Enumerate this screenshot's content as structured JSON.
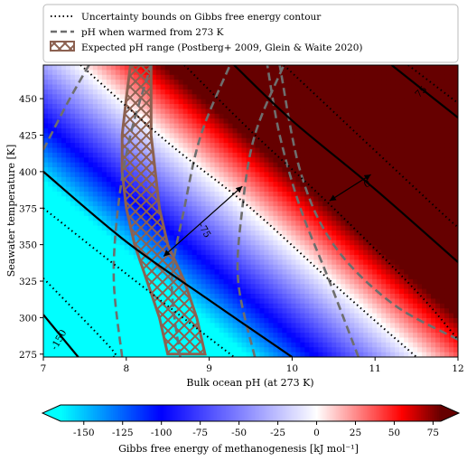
{
  "chart_data": [
    {
      "type": "heatmap",
      "subtype": "filled contour map with overlaid contour lines",
      "xlabel": "Bulk ocean pH (at 273 K)",
      "ylabel": "Seawater temperature [K]",
      "xlim": [
        7,
        12
      ],
      "ylim": [
        273,
        473
      ],
      "xticks": [
        "7",
        "8",
        "9",
        "10",
        "11",
        "12"
      ],
      "yticks": [
        "275",
        "300",
        "325",
        "350",
        "375",
        "400",
        "425",
        "450"
      ],
      "legend_position": "top",
      "legend": [
        {
          "label": "Uncertainty bounds on Gibbs free energy contour",
          "style": "dotted-black-line"
        },
        {
          "label": "pH when warmed from 273 K",
          "style": "dashed-gray-line"
        },
        {
          "label": "Expected pH range (Postberg+ 2009, Glein & Waite 2020)",
          "style": "brown-hatched-patch"
        }
      ],
      "contour_levels": [
        -150,
        -75,
        0,
        75
      ],
      "contour_labels": [
        "-150",
        "-75",
        "0",
        "75"
      ],
      "contour_lines": [
        {
          "level": -150,
          "points": [
            [
              7.0,
              302
            ],
            [
              7.42,
              273
            ]
          ]
        },
        {
          "level": -75,
          "points": [
            [
              7.0,
              400
            ],
            [
              8.0,
              352
            ],
            [
              9.0,
              312
            ],
            [
              10.0,
              273
            ]
          ]
        },
        {
          "level": 0,
          "points": [
            [
              9.3,
              473
            ],
            [
              10.0,
              435
            ],
            [
              11.0,
              388
            ],
            [
              12.0,
              338
            ]
          ]
        },
        {
          "level": 75,
          "points": [
            [
              11.2,
              473
            ],
            [
              11.6,
              455
            ],
            [
              12.0,
              437
            ]
          ]
        }
      ],
      "uncertainty_bounds": [
        {
          "points": [
            [
              7.0,
              375
            ],
            [
              8.0,
              330
            ],
            [
              9.3,
              273
            ]
          ]
        },
        {
          "points": [
            [
              7.45,
              473
            ],
            [
              8.5,
              420
            ],
            [
              9.5,
              375
            ],
            [
              10.6,
              318
            ],
            [
              11.5,
              273
            ]
          ]
        },
        {
          "points": [
            [
              7.0,
              327
            ],
            [
              7.8,
              280
            ],
            [
              7.85,
              273
            ]
          ]
        },
        {
          "points": [
            [
              8.7,
              473
            ],
            [
              9.5,
              428
            ],
            [
              10.5,
              375
            ],
            [
              11.5,
              318
            ],
            [
              12.0,
              285
            ]
          ]
        },
        {
          "points": [
            [
              9.9,
              473
            ],
            [
              10.8,
              425
            ],
            [
              11.8,
              372
            ],
            [
              12.0,
              362
            ]
          ]
        },
        {
          "points": [
            [
              11.4,
              473
            ],
            [
              12.0,
              447
            ]
          ]
        }
      ],
      "warming_curves": [
        {
          "points": [
            [
              7.0,
              415
            ],
            [
              7.3,
              448
            ],
            [
              7.55,
              473
            ]
          ]
        },
        {
          "points": [
            [
              7.95,
              273
            ],
            [
              7.85,
              325
            ],
            [
              7.9,
              375
            ],
            [
              8.05,
              425
            ],
            [
              8.3,
              473
            ]
          ]
        },
        {
          "points": [
            [
              8.65,
              273
            ],
            [
              8.55,
              325
            ],
            [
              8.7,
              375
            ],
            [
              8.9,
              425
            ],
            [
              9.25,
              473
            ]
          ]
        },
        {
          "points": [
            [
              9.55,
              273
            ],
            [
              9.35,
              325
            ],
            [
              9.4,
              375
            ],
            [
              9.55,
              425
            ],
            [
              9.9,
              473
            ]
          ]
        },
        {
          "points": [
            [
              10.8,
              273
            ],
            [
              10.45,
              325
            ],
            [
              10.1,
              375
            ],
            [
              9.85,
              425
            ],
            [
              9.7,
              473
            ]
          ]
        },
        {
          "points": [
            [
              12.0,
              285
            ],
            [
              11.2,
              310
            ],
            [
              10.5,
              350
            ],
            [
              10.1,
              400
            ],
            [
              9.85,
              473
            ]
          ]
        }
      ],
      "expected_ph_band": {
        "left_edge": [
          [
            8.05,
            473
          ],
          [
            8.0,
            450
          ],
          [
            7.95,
            425
          ],
          [
            7.95,
            400
          ],
          [
            8.0,
            375
          ],
          [
            8.1,
            350
          ],
          [
            8.25,
            325
          ],
          [
            8.4,
            300
          ],
          [
            8.5,
            275
          ]
        ],
        "right_edge": [
          [
            8.3,
            473
          ],
          [
            8.3,
            450
          ],
          [
            8.3,
            425
          ],
          [
            8.35,
            400
          ],
          [
            8.4,
            375
          ],
          [
            8.5,
            350
          ],
          [
            8.7,
            325
          ],
          [
            8.85,
            300
          ],
          [
            8.95,
            275
          ]
        ]
      },
      "annotations": [
        {
          "type": "double-arrow",
          "from": [
            8.45,
            342
          ],
          "to": [
            9.4,
            390
          ]
        },
        {
          "type": "double-arrow",
          "from": [
            10.45,
            380
          ],
          "to": [
            10.95,
            398
          ]
        }
      ],
      "colors": {
        "min": "#00ffff",
        "low": "#0000ff",
        "zero": "#ffffff",
        "high": "#ff0000",
        "max": "#660000",
        "band": "#8c6151",
        "warming": "#6e6e6e"
      }
    },
    {
      "type": "colorbar",
      "orientation": "horizontal",
      "label": "Gibbs free energy of methanogenesis [kJ mol⁻¹]",
      "range": [
        -165,
        80
      ],
      "ticks": [
        "-150",
        "-125",
        "-100",
        "-75",
        "-50",
        "-25",
        "0",
        "25",
        "50",
        "75"
      ],
      "extend": "both"
    }
  ]
}
